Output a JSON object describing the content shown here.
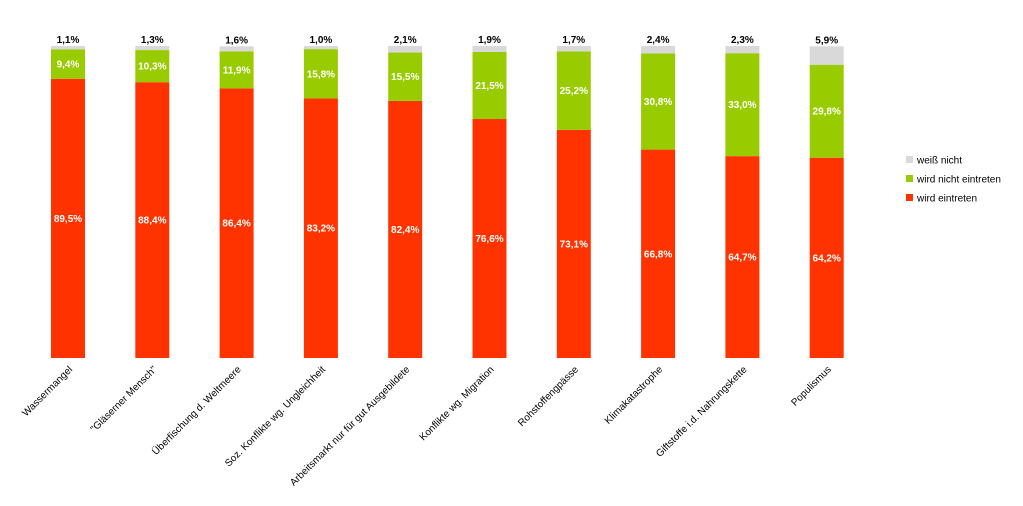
{
  "chart_data": {
    "type": "bar",
    "stacked": true,
    "percent_stacked": true,
    "categories": [
      "Wassermangel",
      "\"Gläserner Mensch\"",
      "Überfischung d. Weltmeere",
      "Soz. Konflikte wg. Ungleichheit",
      "Arbeitsmarkt nur für gut Ausgebildete",
      "Konflikte wg. Migration",
      "Rohstoffengpässe",
      "Klimakatastrophe",
      "Giftstoffe i.d. Nahrungskette",
      "Populismus"
    ],
    "series": [
      {
        "name": "wird eintreten",
        "color": "#ff3300",
        "values": [
          89.5,
          88.4,
          86.4,
          83.2,
          82.4,
          76.6,
          73.1,
          66.8,
          64.7,
          64.2
        ],
        "labels": [
          "89,5%",
          "88,4%",
          "86,4%",
          "83,2%",
          "82,4%",
          "76,6%",
          "73,1%",
          "66,8%",
          "64,7%",
          "64,2%"
        ]
      },
      {
        "name": "wird nicht eintreten",
        "color": "#99cc00",
        "values": [
          9.4,
          10.3,
          11.9,
          15.8,
          15.5,
          21.5,
          25.2,
          30.8,
          33.0,
          29.8
        ],
        "labels": [
          "9,4%",
          "10,3%",
          "11,9%",
          "15,8%",
          "15,5%",
          "21,5%",
          "25,2%",
          "30,8%",
          "33,0%",
          "29,8%"
        ]
      },
      {
        "name": "weiß nicht",
        "color": "#d9d9d9",
        "values": [
          1.1,
          1.3,
          1.6,
          1.0,
          2.1,
          1.9,
          1.7,
          2.4,
          2.3,
          5.9
        ],
        "labels": [
          "1,1%",
          "1,3%",
          "1,6%",
          "1,0%",
          "2,1%",
          "1,9%",
          "1,7%",
          "2,4%",
          "2,3%",
          "5,9%"
        ]
      }
    ],
    "legend_order": [
      "weiß nicht",
      "wird nicht eintreten",
      "wird eintreten"
    ],
    "ylim": [
      0,
      100
    ],
    "grid": false,
    "legend_position": "right",
    "title": "",
    "xlabel": "",
    "ylabel": ""
  }
}
